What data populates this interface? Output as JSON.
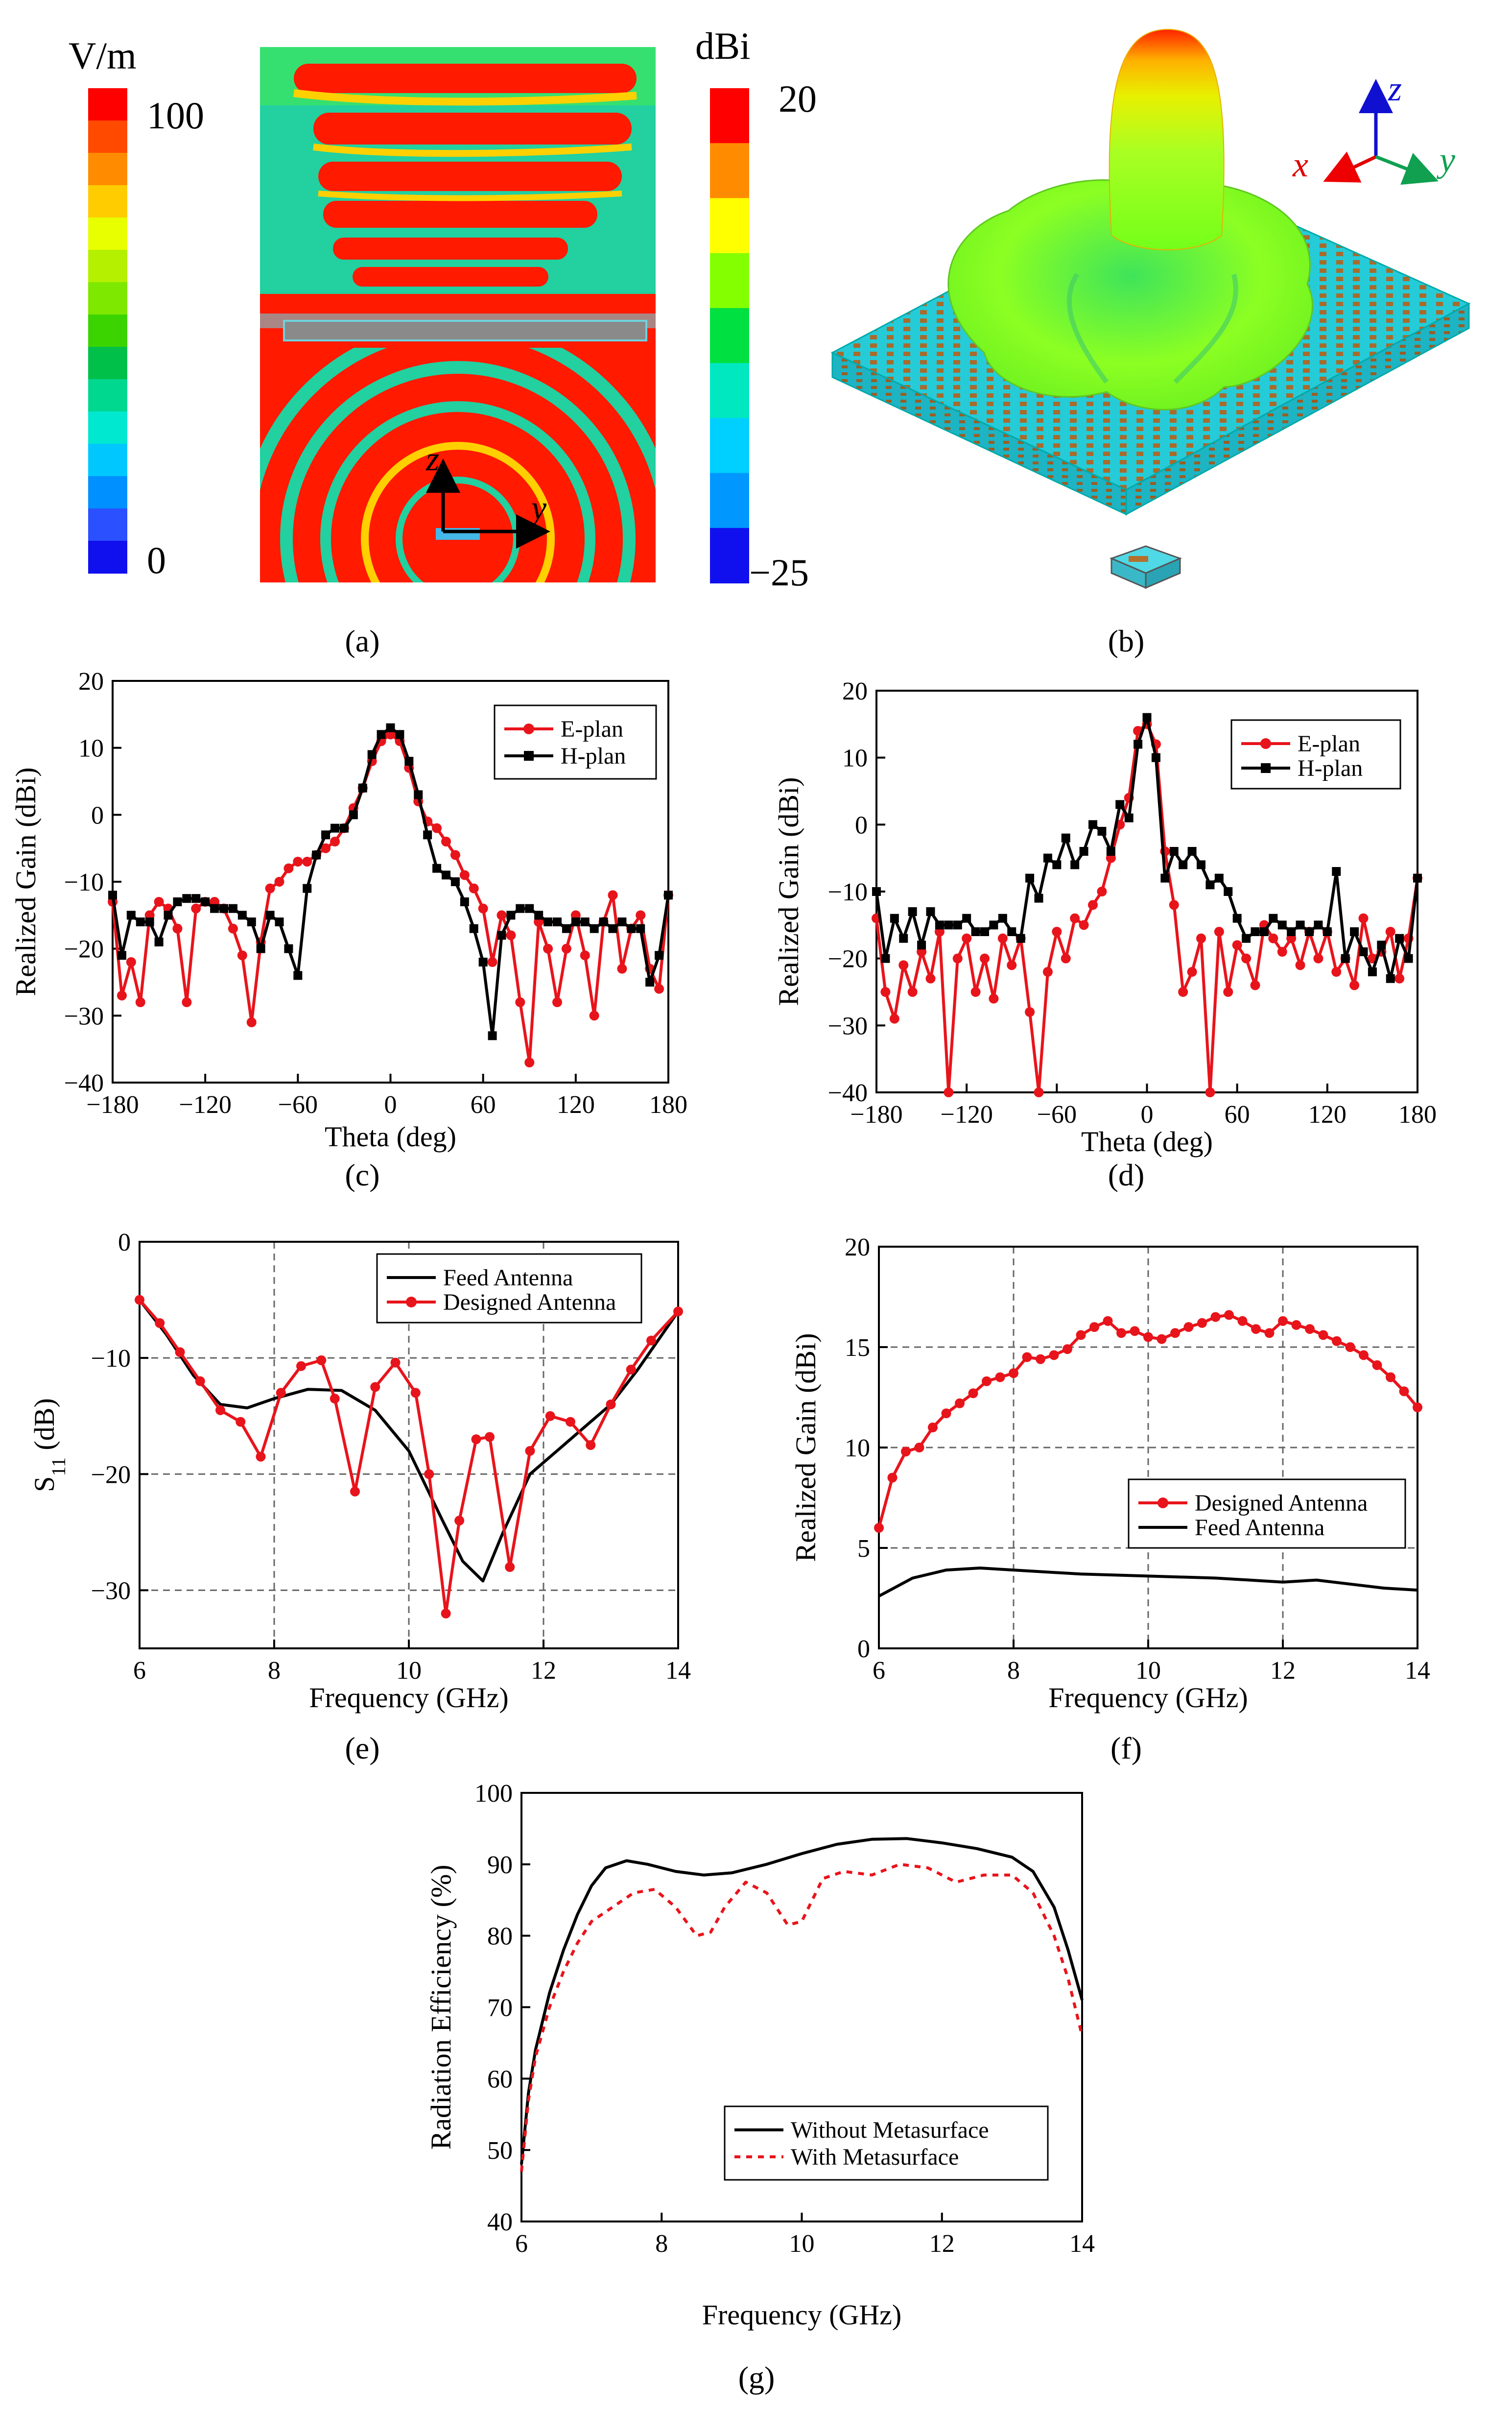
{
  "panel_labels": [
    "(a)",
    "(b)",
    "(c)",
    "(d)",
    "(e)",
    "(f)",
    "(g)"
  ],
  "panel_a": {
    "colorbar_unit": "V/m",
    "colorbar_max": "100",
    "colorbar_min": "0",
    "axis_z": "z",
    "axis_y": "y",
    "colors": [
      "#ff0000",
      "#ff4a00",
      "#ff8c00",
      "#ffcc00",
      "#e8ff00",
      "#b4f000",
      "#7ee800",
      "#3bd400",
      "#00c04a",
      "#00d890",
      "#00e8d0",
      "#00c8ff",
      "#0090ff",
      "#2a50ff",
      "#1010ee"
    ]
  },
  "panel_b": {
    "colorbar_unit": "dBi",
    "colorbar_max": "20",
    "colorbar_min": "−25",
    "axis_x": "x",
    "axis_y": "y",
    "axis_z": "z",
    "colors": [
      "#ff0000",
      "#ff8c00",
      "#ffff00",
      "#84ff00",
      "#00e040",
      "#00e8c0",
      "#00d0ff",
      "#0098ff",
      "#1010ee"
    ]
  },
  "chart_data": [
    {
      "id": "c",
      "type": "line",
      "xlabel": "Theta (deg)",
      "ylabel": "Realized Gain (dBi)",
      "xlim": [
        -180,
        180
      ],
      "ylim": [
        -40,
        20
      ],
      "xticks": [
        -180,
        -120,
        -60,
        0,
        60,
        120,
        180
      ],
      "yticks": [
        -40,
        -30,
        -20,
        -10,
        0,
        10,
        20
      ],
      "grid": false,
      "legend_position": "top-right",
      "series": [
        {
          "name": "E-plan",
          "color": "#e8141b",
          "marker": "circle",
          "x": [
            -180,
            -174,
            -168,
            -162,
            -156,
            -150,
            -144,
            -138,
            -132,
            -126,
            -120,
            -114,
            -108,
            -102,
            -96,
            -90,
            -84,
            -78,
            -72,
            -66,
            -60,
            -54,
            -48,
            -42,
            -36,
            -30,
            -24,
            -18,
            -12,
            -6,
            0,
            6,
            12,
            18,
            24,
            30,
            36,
            42,
            48,
            54,
            60,
            66,
            72,
            78,
            84,
            90,
            96,
            102,
            108,
            114,
            120,
            126,
            132,
            138,
            144,
            150,
            156,
            162,
            168,
            174,
            180
          ],
          "values": [
            -13,
            -27,
            -22,
            -28,
            -15,
            -13,
            -14,
            -17,
            -28,
            -14,
            -13,
            -13,
            -14,
            -17,
            -21,
            -31,
            -19,
            -11,
            -10,
            -8,
            -7,
            -7,
            -6,
            -5,
            -4,
            -2,
            1,
            4,
            8,
            11,
            12,
            11,
            7,
            2,
            -1,
            -2,
            -4,
            -6,
            -9,
            -11,
            -14,
            -22,
            -15,
            -18,
            -28,
            -37,
            -16,
            -20,
            -28,
            -20,
            -15,
            -21,
            -30,
            -16,
            -12,
            -23,
            -17,
            -15,
            -23,
            -26,
            -12
          ]
        },
        {
          "name": "H-plan",
          "color": "#000000",
          "marker": "square",
          "x": [
            -180,
            -174,
            -168,
            -162,
            -156,
            -150,
            -144,
            -138,
            -132,
            -126,
            -120,
            -114,
            -108,
            -102,
            -96,
            -90,
            -84,
            -78,
            -72,
            -66,
            -60,
            -54,
            -48,
            -42,
            -36,
            -30,
            -24,
            -18,
            -12,
            -6,
            0,
            6,
            12,
            18,
            24,
            30,
            36,
            42,
            48,
            54,
            60,
            66,
            72,
            78,
            84,
            90,
            96,
            102,
            108,
            114,
            120,
            126,
            132,
            138,
            144,
            150,
            156,
            162,
            168,
            174,
            180
          ],
          "values": [
            -12,
            -21,
            -15,
            -16,
            -16,
            -19,
            -15,
            -13,
            -12.5,
            -12.5,
            -13,
            -14,
            -14,
            -14,
            -15,
            -16,
            -20,
            -15,
            -16,
            -20,
            -24,
            -11,
            -6,
            -3,
            -2,
            -2,
            0,
            4,
            9,
            12,
            13,
            12,
            8,
            3,
            -3,
            -8,
            -9,
            -10,
            -13,
            -17,
            -22,
            -33,
            -18,
            -15,
            -14,
            -14,
            -15,
            -16,
            -16,
            -17,
            -16,
            -16,
            -17,
            -16,
            -17,
            -16,
            -17,
            -17,
            -25,
            -21,
            -12
          ]
        }
      ]
    },
    {
      "id": "d",
      "type": "line",
      "xlabel": "Theta (deg)",
      "ylabel": "Realized Gain (dBi)",
      "xlim": [
        -180,
        180
      ],
      "ylim": [
        -40,
        20
      ],
      "xticks": [
        -180,
        -120,
        -60,
        0,
        60,
        120,
        180
      ],
      "yticks": [
        -40,
        -30,
        -20,
        -10,
        0,
        10,
        20
      ],
      "grid": false,
      "legend_position": "top-right",
      "series": [
        {
          "name": "E-plan",
          "color": "#e8141b",
          "marker": "circle",
          "x": [
            -180,
            -174,
            -168,
            -162,
            -156,
            -150,
            -144,
            -138,
            -132,
            -126,
            -120,
            -114,
            -108,
            -102,
            -96,
            -90,
            -84,
            -78,
            -72,
            -66,
            -60,
            -54,
            -48,
            -42,
            -36,
            -30,
            -24,
            -18,
            -12,
            -6,
            0,
            6,
            12,
            18,
            24,
            30,
            36,
            42,
            48,
            54,
            60,
            66,
            72,
            78,
            84,
            90,
            96,
            102,
            108,
            114,
            120,
            126,
            132,
            138,
            144,
            150,
            156,
            162,
            168,
            174,
            180
          ],
          "values": [
            -14,
            -25,
            -29,
            -21,
            -25,
            -19,
            -23,
            -16,
            -40,
            -20,
            -17,
            -25,
            -20,
            -26,
            -17,
            -21,
            -17,
            -28,
            -40,
            -22,
            -16,
            -20,
            -14,
            -15,
            -12,
            -10,
            -5,
            0,
            4,
            14,
            15,
            12,
            -4,
            -12,
            -25,
            -22,
            -17,
            -40,
            -16,
            -25,
            -18,
            -20,
            -24,
            -15,
            -17,
            -19,
            -17,
            -21,
            -16,
            -20,
            -16,
            -22,
            -20,
            -24,
            -14,
            -20,
            -19,
            -16,
            -23,
            -17,
            -8
          ]
        },
        {
          "name": "H-plan",
          "color": "#000000",
          "marker": "square",
          "x": [
            -180,
            -174,
            -168,
            -162,
            -156,
            -150,
            -144,
            -138,
            -132,
            -126,
            -120,
            -114,
            -108,
            -102,
            -96,
            -90,
            -84,
            -78,
            -72,
            -66,
            -60,
            -54,
            -48,
            -42,
            -36,
            -30,
            -24,
            -18,
            -12,
            -6,
            0,
            6,
            12,
            18,
            24,
            30,
            36,
            42,
            48,
            54,
            60,
            66,
            72,
            78,
            84,
            90,
            96,
            102,
            108,
            114,
            120,
            126,
            132,
            138,
            144,
            150,
            156,
            162,
            168,
            174,
            180
          ],
          "values": [
            -10,
            -20,
            -14,
            -17,
            -13,
            -18,
            -13,
            -15,
            -15,
            -15,
            -14,
            -16,
            -16,
            -15,
            -14,
            -16,
            -17,
            -8,
            -11,
            -5,
            -6,
            -2,
            -6,
            -4,
            0,
            -1,
            -4,
            3,
            1,
            12,
            16,
            10,
            -8,
            -4,
            -6,
            -4,
            -6,
            -9,
            -8,
            -10,
            -14,
            -17,
            -16,
            -16,
            -14,
            -15,
            -16,
            -15,
            -16,
            -15,
            -16,
            -7,
            -20,
            -16,
            -19,
            -22,
            -18,
            -23,
            -17,
            -20,
            -8
          ]
        }
      ]
    },
    {
      "id": "e",
      "type": "line",
      "xlabel": "Frequency (GHz)",
      "ylabel": "S11 (dB)",
      "xlim": [
        6,
        14
      ],
      "ylim": [
        -35,
        0
      ],
      "xticks": [
        6,
        8,
        10,
        12,
        14
      ],
      "yticks": [
        -30,
        -20,
        -10,
        0
      ],
      "grid": true,
      "legend_position": "top-right",
      "series": [
        {
          "name": "Feed Antenna",
          "color": "#000000",
          "marker": "none",
          "x": [
            6,
            6.4,
            6.8,
            7.2,
            7.6,
            8,
            8.5,
            9,
            9.5,
            10,
            10.5,
            10.8,
            11.1,
            11.4,
            11.8,
            12.2,
            12.6,
            13,
            13.4,
            14
          ],
          "values": [
            -5,
            -8,
            -11.5,
            -14,
            -14.3,
            -13.5,
            -12.7,
            -12.8,
            -14.5,
            -18,
            -24,
            -27.5,
            -29.2,
            -25,
            -20,
            -18,
            -16,
            -14,
            -11,
            -6
          ]
        },
        {
          "name": "Designed Antenna",
          "color": "#e8141b",
          "marker": "circle",
          "x": [
            6,
            6.3,
            6.6,
            6.9,
            7.2,
            7.5,
            7.8,
            8.1,
            8.4,
            8.7,
            8.9,
            9.2,
            9.5,
            9.8,
            10.1,
            10.3,
            10.55,
            10.75,
            11,
            11.2,
            11.5,
            11.8,
            12.1,
            12.4,
            12.7,
            13,
            13.3,
            13.6,
            14
          ],
          "values": [
            -5,
            -7,
            -9.5,
            -12,
            -14.5,
            -15.5,
            -18.5,
            -13,
            -10.7,
            -10.2,
            -13.5,
            -21.5,
            -12.5,
            -10.4,
            -13,
            -20,
            -32,
            -24,
            -17,
            -16.8,
            -28,
            -18,
            -15,
            -15.5,
            -17.5,
            -14,
            -11,
            -8.5,
            -6
          ]
        }
      ]
    },
    {
      "id": "f",
      "type": "line",
      "xlabel": "Frequency (GHz)",
      "ylabel": "Realized Gain (dBi)",
      "xlim": [
        6,
        14
      ],
      "ylim": [
        0,
        20
      ],
      "xticks": [
        6,
        8,
        10,
        12,
        14
      ],
      "yticks": [
        0,
        5,
        10,
        15,
        20
      ],
      "grid": true,
      "legend_position": "center-right",
      "series": [
        {
          "name": "Designed Antenna",
          "color": "#e8141b",
          "marker": "circle",
          "x": [
            6,
            6.2,
            6.4,
            6.6,
            6.8,
            7,
            7.2,
            7.4,
            7.6,
            7.8,
            8,
            8.2,
            8.4,
            8.6,
            8.8,
            9,
            9.2,
            9.4,
            9.6,
            9.8,
            10,
            10.2,
            10.4,
            10.6,
            10.8,
            11,
            11.2,
            11.4,
            11.6,
            11.8,
            12,
            12.2,
            12.4,
            12.6,
            12.8,
            13,
            13.2,
            13.4,
            13.6,
            13.8,
            14
          ],
          "values": [
            6,
            8.5,
            9.8,
            10,
            11,
            11.7,
            12.2,
            12.7,
            13.3,
            13.5,
            13.7,
            14.5,
            14.4,
            14.6,
            14.9,
            15.6,
            16,
            16.3,
            15.7,
            15.8,
            15.5,
            15.4,
            15.7,
            16,
            16.2,
            16.5,
            16.6,
            16.3,
            15.9,
            15.7,
            16.3,
            16.1,
            15.9,
            15.6,
            15.3,
            15,
            14.6,
            14.1,
            13.5,
            12.8,
            12
          ]
        },
        {
          "name": "Feed Antenna",
          "color": "#000000",
          "marker": "none",
          "x": [
            6,
            6.5,
            7,
            7.5,
            8,
            9,
            10,
            11,
            12,
            12.5,
            13,
            13.5,
            14
          ],
          "values": [
            2.6,
            3.5,
            3.9,
            4,
            3.9,
            3.7,
            3.6,
            3.5,
            3.3,
            3.4,
            3.2,
            3,
            2.9
          ]
        }
      ]
    },
    {
      "id": "g",
      "type": "line",
      "xlabel": "Frequency (GHz)",
      "ylabel": "Radiation Efficiency (%)",
      "xlim": [
        6,
        14
      ],
      "ylim": [
        40,
        100
      ],
      "xticks": [
        6,
        8,
        10,
        12,
        14
      ],
      "yticks": [
        40,
        50,
        60,
        70,
        80,
        90,
        100
      ],
      "grid": false,
      "legend_position": "bottom-center",
      "series": [
        {
          "name": "Without Metasurface",
          "color": "#000000",
          "dash": "solid",
          "x": [
            6,
            6.1,
            6.2,
            6.4,
            6.6,
            6.8,
            7,
            7.2,
            7.5,
            7.8,
            8.2,
            8.6,
            9,
            9.5,
            10,
            10.5,
            11,
            11.5,
            12,
            12.5,
            13,
            13.3,
            13.6,
            13.8,
            14
          ],
          "values": [
            48,
            58,
            64,
            72,
            78,
            83,
            87,
            89.5,
            90.5,
            90,
            89,
            88.5,
            88.8,
            90,
            91.5,
            92.8,
            93.5,
            93.6,
            93,
            92.2,
            91,
            89,
            84,
            78,
            71
          ]
        },
        {
          "name": "With Metasurface",
          "color": "#e8141b",
          "dash": "dotted",
          "x": [
            6,
            6.1,
            6.2,
            6.4,
            6.6,
            6.8,
            7,
            7.3,
            7.6,
            7.9,
            8.2,
            8.5,
            8.7,
            8.9,
            9.2,
            9.5,
            9.8,
            10,
            10.3,
            10.6,
            11,
            11.4,
            11.8,
            12.2,
            12.6,
            13,
            13.3,
            13.6,
            13.8,
            14
          ],
          "values": [
            47,
            57,
            63,
            70,
            75,
            79,
            82,
            84,
            86,
            86.5,
            84,
            80,
            80.5,
            84,
            87.5,
            86,
            81.5,
            82,
            88,
            89,
            88.5,
            90,
            89.5,
            87.5,
            88.5,
            88.5,
            86,
            80,
            74,
            66
          ]
        }
      ]
    }
  ]
}
